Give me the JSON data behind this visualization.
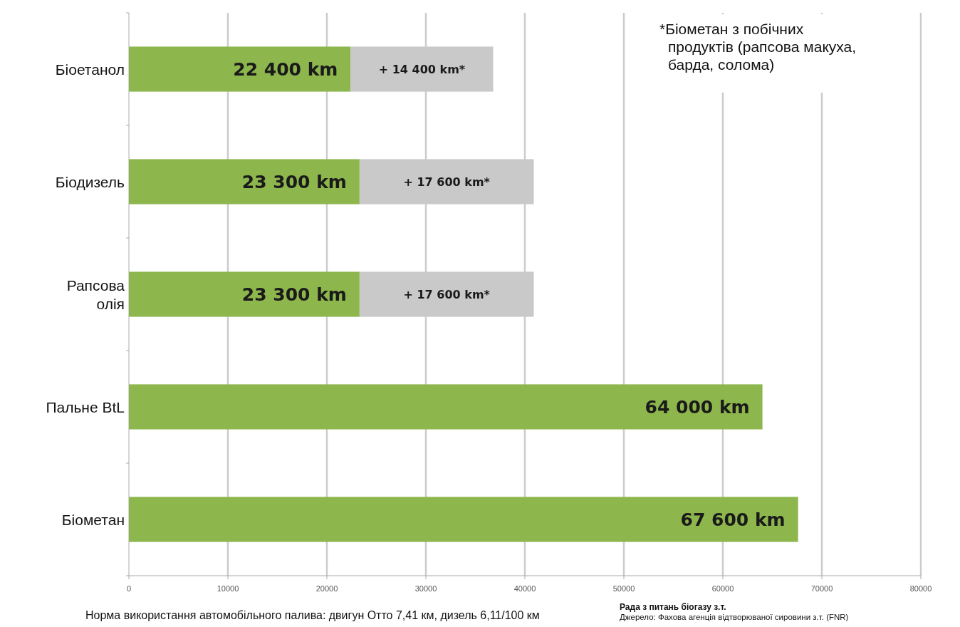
{
  "chart_data": {
    "type": "bar",
    "orientation": "horizontal",
    "stacked": true,
    "categories": [
      "Біоетанол",
      "Біодизель",
      "Рапсова олія",
      "Пальне BtL",
      "Біометан"
    ],
    "series": [
      {
        "color": "#8db64c",
        "values": [
          22400,
          23300,
          23300,
          64000,
          67600
        ],
        "value_labels": [
          "22 400 km",
          "23 300 km",
          "23 300 km",
          "64 000 km",
          "67 600 km"
        ]
      },
      {
        "color": "#c9c9c9",
        "values": [
          14400,
          17600,
          17600,
          null,
          null
        ],
        "value_labels": [
          "+ 14 400 km*",
          "+ 17 600 km*",
          "+ 17 600 km*",
          null,
          null
        ]
      }
    ],
    "xlim": [
      0,
      80000
    ],
    "xticks": [
      0,
      10000,
      20000,
      30000,
      40000,
      50000,
      60000,
      70000,
      80000
    ],
    "grid": "x",
    "annotations": [
      "*Біометан з побічних продуктів (рапсова макуха, барда, солома)",
      "Норма використання автомобільного палива: двигун Отто 7,41 км, дизель 6,11/100 км",
      "Рада з питань біогазу з.т.",
      "Джерело: Фахова агенція відтворюваної сировини з.т. (FNR)"
    ]
  }
}
